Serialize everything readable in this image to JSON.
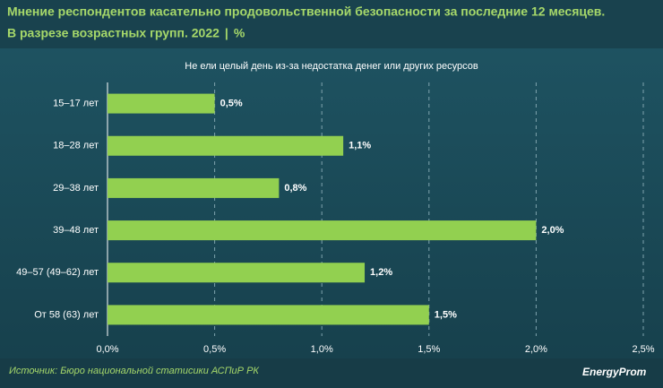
{
  "chart_data": {
    "type": "hbar",
    "title": [
      "Мнение респондентов касательно продовольственной безопасности за последние 12 месяцев.",
      "В разрезе возрастных групп. 2022"
    ],
    "unit": "%",
    "subtitle": "Не ели целый день из-за недостатка денег или других ресурсов",
    "categories": [
      "15–17 лет",
      "18–28 лет",
      "29–38 лет",
      "39–48 лет",
      "49–57 (49–62) лет",
      "От 58 (63) лет"
    ],
    "values": [
      0.5,
      1.1,
      0.8,
      2.0,
      1.2,
      1.5
    ],
    "value_labels": [
      "0,5%",
      "1,1%",
      "0,8%",
      "2,0%",
      "1,2%",
      "1,5%"
    ],
    "color": "#92d050",
    "xlim": [
      0,
      2.5
    ],
    "xticks": [
      {
        "value": 0,
        "label": "0,0%"
      },
      {
        "value": 0.5,
        "label": "0,5%"
      },
      {
        "value": 1.0,
        "label": "1,0%"
      },
      {
        "value": 1.5,
        "label": "1,5%"
      },
      {
        "value": 2.0,
        "label": "2,0%"
      },
      {
        "value": 2.5,
        "label": "2,5%"
      }
    ],
    "grid": true,
    "source": "Источник: Бюро национальной статисики АСПиР РК",
    "brand": "EnergyProm"
  }
}
